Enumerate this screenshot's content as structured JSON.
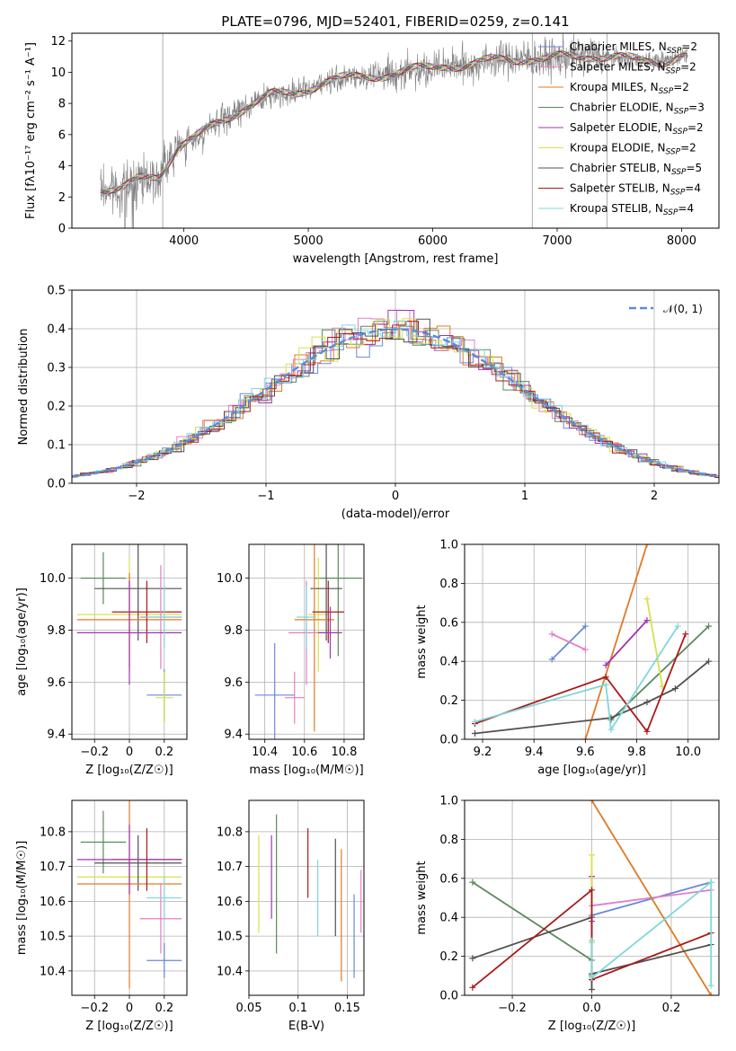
{
  "page": {
    "title": "PLATE=0796, MJD=52401, FIBERID=0259, z=0.141"
  },
  "colors": {
    "data": "#808080",
    "axis": "#000000",
    "grid": "#b0b0b0",
    "gauss": "#5b8bd9"
  },
  "series": [
    {
      "key": "cm",
      "label": "Chabrier MILES, N",
      "sub": "SSP",
      "eq": "=2",
      "color": "#6888d8"
    },
    {
      "key": "sm",
      "label": "Salpeter MILES, N",
      "sub": "SSP",
      "eq": "=2",
      "color": "#e27ec8"
    },
    {
      "key": "km",
      "label": "Kroupa MILES, N",
      "sub": "SSP",
      "eq": "=2",
      "color": "#e07a25"
    },
    {
      "key": "ce",
      "label": "Chabrier ELODIE, N",
      "sub": "SSP",
      "eq": "=3",
      "color": "#5a8a5a"
    },
    {
      "key": "se",
      "label": "Salpeter ELODIE, N",
      "sub": "SSP",
      "eq": "=2",
      "color": "#a034b0"
    },
    {
      "key": "ke",
      "label": "Kroupa ELODIE, N",
      "sub": "SSP",
      "eq": "=2",
      "color": "#d8e04a"
    },
    {
      "key": "cs",
      "label": "Chabrier STELIB, N",
      "sub": "SSP",
      "eq": "=5",
      "color": "#505050"
    },
    {
      "key": "ss",
      "label": "Salpeter STELIB, N",
      "sub": "SSP",
      "eq": "=4",
      "color": "#aa1a1a"
    },
    {
      "key": "ks",
      "label": "Kroupa STELIB, N",
      "sub": "SSP",
      "eq": "=4",
      "color": "#7fd8dc"
    }
  ],
  "chart_data": [
    {
      "id": "spectrum",
      "type": "line",
      "title": "PLATE=0796, MJD=52401, FIBERID=0259, z=0.141",
      "xlabel": "wavelength [Angstrom, rest frame]",
      "ylabel": "Flux [fλ10⁻¹⁷ erg cm⁻² s⁻¹ A⁻¹]",
      "xlim": [
        3100,
        8300
      ],
      "ylim": [
        0,
        12.5
      ],
      "xticks": [
        4000,
        5000,
        6000,
        7000,
        8000
      ],
      "yticks": [
        0,
        2,
        4,
        6,
        8,
        10,
        12
      ],
      "grid": "vertical lines at 3830, 6800, 7400",
      "legend": "top-right",
      "continuum": {
        "x": [
          3330,
          3500,
          3650,
          3800,
          3950,
          4100,
          4300,
          4500,
          4700,
          4900,
          5100,
          5300,
          5500,
          5700,
          5900,
          6100,
          6300,
          6500,
          6700,
          6900,
          7100,
          7300,
          7500,
          7700,
          7900,
          8050
        ],
        "y": [
          2.5,
          2.4,
          3.2,
          3.4,
          5.2,
          5.8,
          6.9,
          7.8,
          8.5,
          8.7,
          9.3,
          9.6,
          9.8,
          9.9,
          10.2,
          10.5,
          10.4,
          10.8,
          10.9,
          10.8,
          11.0,
          11.1,
          10.9,
          10.7,
          10.8,
          11.2
        ]
      }
    },
    {
      "id": "residuals",
      "type": "line",
      "xlabel": "(data-model)/error",
      "ylabel": "Normed distribution",
      "xlim": [
        -2.5,
        2.5
      ],
      "ylim": [
        0,
        0.5
      ],
      "xticks": [
        -2,
        -1,
        0,
        1,
        2
      ],
      "yticks": [
        0.0,
        0.1,
        0.2,
        0.3,
        0.4,
        0.5
      ],
      "grid": true,
      "legend": "top-right",
      "gauss_label": "𝒩(0, 1)",
      "bin_width": 0.1
    },
    {
      "id": "age_vs_Z",
      "type": "errorbar",
      "xlabel": "Z [log₁₀(Z/Z☉)]",
      "ylabel": "age  [log₁₀(age/yr)]",
      "xlim": [
        -0.33,
        0.33
      ],
      "ylim": [
        9.38,
        10.13
      ],
      "xticks": [
        -0.2,
        0.0,
        0.2
      ],
      "yticks": [
        9.4,
        9.6,
        9.8,
        10.0
      ],
      "grid": true,
      "points": [
        {
          "s": "ce",
          "x": -0.15,
          "xe": 0.13,
          "y": 10.0,
          "ye": 0.1
        },
        {
          "s": "ke",
          "x": 0.0,
          "xe": 0.3,
          "y": 9.86,
          "ye": 0.22
        },
        {
          "s": "cs",
          "x": 0.05,
          "xe": 0.25,
          "y": 9.96,
          "ye": 0.2
        },
        {
          "s": "km",
          "x": 0.0,
          "xe": 0.3,
          "y": 9.84,
          "ye": 0.18
        },
        {
          "s": "ss",
          "x": 0.1,
          "xe": 0.2,
          "y": 9.87,
          "ye": 0.12
        },
        {
          "s": "sm",
          "x": 0.18,
          "xe": 0.12,
          "y": 9.85,
          "ye": 0.2
        },
        {
          "s": "se",
          "x": 0.0,
          "xe": 0.3,
          "y": 9.79,
          "ye": 0.2
        },
        {
          "s": "ks",
          "x": 0.2,
          "xe": 0.1,
          "y": 9.85,
          "ye": 0.12
        },
        {
          "s": "cm",
          "x": 0.2,
          "xe": 0.1,
          "y": 9.55,
          "ye": 0.1
        },
        {
          "s": "ke",
          "x": 0.2,
          "xe": 0.05,
          "y": 9.54,
          "ye": 0.1
        }
      ]
    },
    {
      "id": "age_vs_mass",
      "type": "errorbar",
      "xlabel": "mass [log₁₀(M/M☉)]",
      "ylabel": "",
      "xlim": [
        10.32,
        10.9
      ],
      "ylim": [
        9.38,
        10.13
      ],
      "xticks": [
        10.4,
        10.6,
        10.8
      ],
      "yticks": [
        9.4,
        9.6,
        9.8,
        10.0
      ],
      "grid": true,
      "points": [
        {
          "s": "ce",
          "x": 10.77,
          "xe": 0.12,
          "y": 10.0,
          "ye": 0.3
        },
        {
          "s": "ke",
          "x": 10.67,
          "xe": 0.05,
          "y": 9.86,
          "ye": 0.22
        },
        {
          "s": "cs",
          "x": 10.71,
          "xe": 0.08,
          "y": 9.96,
          "ye": 0.2
        },
        {
          "s": "km",
          "x": 10.65,
          "xe": 0.1,
          "y": 9.84,
          "ye": 0.43
        },
        {
          "s": "ss",
          "x": 10.72,
          "xe": 0.08,
          "y": 9.87,
          "ye": 0.12
        },
        {
          "s": "sm",
          "x": 10.61,
          "xe": 0.09,
          "y": 9.79,
          "ye": 0.2
        },
        {
          "s": "se",
          "x": 10.73,
          "xe": 0.06,
          "y": 9.79,
          "ye": 0.1
        },
        {
          "s": "ks",
          "x": 10.61,
          "xe": 0.05,
          "y": 9.85,
          "ye": 0.12
        },
        {
          "s": "cm",
          "x": 10.45,
          "xe": 0.1,
          "y": 9.55,
          "ye": 0.2
        },
        {
          "s": "sm",
          "x": 10.55,
          "xe": 0.05,
          "y": 9.54,
          "ye": 0.1
        }
      ]
    },
    {
      "id": "weight_vs_age",
      "type": "line",
      "xlabel": "age  [log₁₀(age/yr)]",
      "ylabel": "mass weight",
      "xlim": [
        9.13,
        10.12
      ],
      "ylim": [
        0,
        1
      ],
      "xticks": [
        9.2,
        9.4,
        9.6,
        9.8,
        10.0
      ],
      "yticks": [
        0.0,
        0.2,
        0.4,
        0.6,
        0.8,
        1.0
      ],
      "grid": true,
      "lines": [
        {
          "s": "cm",
          "x": [
            9.47,
            9.6
          ],
          "y": [
            0.41,
            0.58
          ]
        },
        {
          "s": "sm",
          "x": [
            9.47,
            9.6
          ],
          "y": [
            0.54,
            0.46
          ]
        },
        {
          "s": "km",
          "x": [
            9.6,
            9.84
          ],
          "y": [
            0.0,
            1.0
          ]
        },
        {
          "s": "ce",
          "x": [
            9.7,
            10.08
          ],
          "y": [
            0.1,
            0.58
          ]
        },
        {
          "s": "se",
          "x": [
            9.68,
            9.84
          ],
          "y": [
            0.38,
            0.61
          ]
        },
        {
          "s": "ke",
          "x": [
            9.84,
            9.9
          ],
          "y": [
            0.72,
            0.27
          ]
        },
        {
          "s": "cs",
          "x": [
            9.17,
            9.7,
            9.84,
            9.95,
            10.08
          ],
          "y": [
            0.03,
            0.11,
            0.19,
            0.26,
            0.4
          ]
        },
        {
          "s": "ss",
          "x": [
            9.17,
            9.68,
            9.84,
            9.99
          ],
          "y": [
            0.08,
            0.32,
            0.04,
            0.54
          ]
        },
        {
          "s": "ks",
          "x": [
            9.17,
            9.68,
            9.7,
            9.96
          ],
          "y": [
            0.09,
            0.28,
            0.05,
            0.58
          ]
        }
      ]
    },
    {
      "id": "mass_vs_Z",
      "type": "errorbar",
      "xlabel": "Z [log₁₀(Z/Z☉)]",
      "ylabel": "mass [log₁₀(M/M☉)]",
      "xlim": [
        -0.33,
        0.33
      ],
      "ylim": [
        10.33,
        10.89
      ],
      "xticks": [
        -0.2,
        0.0,
        0.2
      ],
      "yticks": [
        10.4,
        10.5,
        10.6,
        10.7,
        10.8
      ],
      "grid": true,
      "points": [
        {
          "s": "ce",
          "x": -0.15,
          "xe": 0.13,
          "y": 10.77,
          "ye": 0.09
        },
        {
          "s": "ke",
          "x": 0.0,
          "xe": 0.3,
          "y": 10.67,
          "ye": 0.05
        },
        {
          "s": "cs",
          "x": 0.05,
          "xe": 0.25,
          "y": 10.71,
          "ye": 0.08
        },
        {
          "s": "km",
          "x": 0.0,
          "xe": 0.3,
          "y": 10.65,
          "ye": 0.3
        },
        {
          "s": "ss",
          "x": 0.1,
          "xe": 0.2,
          "y": 10.72,
          "ye": 0.09
        },
        {
          "s": "sm",
          "x": 0.18,
          "xe": 0.12,
          "y": 10.55,
          "ye": 0.1
        },
        {
          "s": "se",
          "x": 0.0,
          "xe": 0.3,
          "y": 10.72,
          "ye": 0.1
        },
        {
          "s": "ks",
          "x": 0.2,
          "xe": 0.1,
          "y": 10.61,
          "ye": 0.06
        },
        {
          "s": "cm",
          "x": 0.2,
          "xe": 0.1,
          "y": 10.43,
          "ye": 0.05
        }
      ]
    },
    {
      "id": "mass_vs_EBV",
      "type": "errorbar",
      "xlabel": "E(B-V)",
      "ylabel": "",
      "xlim": [
        0.05,
        0.167
      ],
      "ylim": [
        10.33,
        10.89
      ],
      "xticks": [
        0.05,
        0.1,
        0.15
      ],
      "yticks": [
        10.4,
        10.5,
        10.6,
        10.7,
        10.8
      ],
      "grid": true,
      "points": [
        {
          "s": "ke",
          "x": 0.06,
          "y": 10.65,
          "ye": 0.14
        },
        {
          "s": "se",
          "x": 0.073,
          "y": 10.67,
          "ye": 0.12
        },
        {
          "s": "ce",
          "x": 0.078,
          "y": 10.65,
          "ye": 0.2
        },
        {
          "s": "ss",
          "x": 0.11,
          "y": 10.71,
          "ye": 0.1
        },
        {
          "s": "ks",
          "x": 0.12,
          "y": 10.61,
          "ye": 0.11
        },
        {
          "s": "cs",
          "x": 0.138,
          "y": 10.64,
          "ye": 0.14
        },
        {
          "s": "km",
          "x": 0.144,
          "y": 10.56,
          "ye": 0.19
        },
        {
          "s": "cm",
          "x": 0.157,
          "y": 10.5,
          "ye": 0.12
        },
        {
          "s": "sm",
          "x": 0.164,
          "y": 10.6,
          "ye": 0.09
        }
      ]
    },
    {
      "id": "weight_vs_Z",
      "type": "line",
      "xlabel": "Z [log₁₀(Z/Z☉)]",
      "ylabel": "mass weight",
      "xlim": [
        -0.32,
        0.32
      ],
      "ylim": [
        0,
        1
      ],
      "xticks": [
        -0.2,
        0.0,
        0.2
      ],
      "yticks": [
        0.0,
        0.2,
        0.4,
        0.6,
        0.8,
        1.0
      ],
      "grid": true,
      "lines": [
        {
          "s": "cm",
          "x": [
            0.0,
            0.3
          ],
          "y": [
            0.41,
            0.58
          ]
        },
        {
          "s": "sm",
          "x": [
            0.0,
            0.3
          ],
          "y": [
            0.46,
            0.54
          ]
        },
        {
          "s": "km",
          "x": [
            0.0,
            0.3
          ],
          "y": [
            1.0,
            0.0
          ]
        },
        {
          "s": "ce",
          "x": [
            -0.3,
            0.0,
            0.0
          ],
          "y": [
            0.58,
            0.18,
            0.1
          ]
        },
        {
          "s": "se",
          "x": [
            0.0,
            0.0
          ],
          "y": [
            0.38,
            0.61
          ]
        },
        {
          "s": "ke",
          "x": [
            0.0,
            0.0
          ],
          "y": [
            0.27,
            0.72
          ]
        },
        {
          "s": "cs",
          "x": [
            -0.3,
            0.0,
            0.0,
            0.0,
            0.3
          ],
          "y": [
            0.19,
            0.4,
            0.03,
            0.11,
            0.26
          ]
        },
        {
          "s": "ss",
          "x": [
            -0.3,
            0.0,
            0.0,
            0.3
          ],
          "y": [
            0.04,
            0.54,
            0.08,
            0.32
          ]
        },
        {
          "s": "ks",
          "x": [
            0.0,
            0.0,
            0.3,
            0.3
          ],
          "y": [
            0.28,
            0.09,
            0.58,
            0.05
          ]
        }
      ]
    }
  ]
}
